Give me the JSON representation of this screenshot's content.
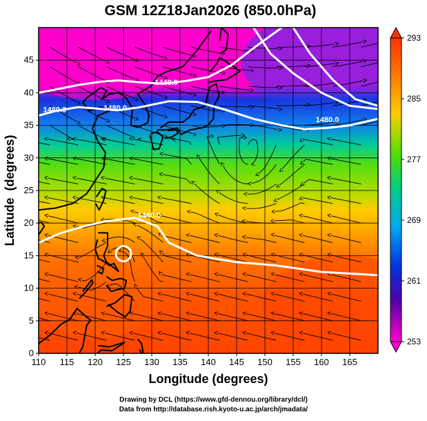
{
  "title": "GSM 12Z18Jan2026 (850.0hPa)",
  "xlabel": "Longitude (degrees)",
  "ylabel": "Latitude  (degrees)",
  "credits": {
    "line1": "Drawing by DCL (https://www.gfd-dennou.org/library/dcl/)",
    "line2": "Data from http://database.rish.kyoto-u.ac.jp/arch/jmadata/"
  },
  "map": {
    "lon_range": [
      110,
      170
    ],
    "lat_range": [
      0,
      50
    ],
    "lon_ticks": [
      "110",
      "115",
      "120",
      "125",
      "130",
      "135",
      "140",
      "145",
      "150",
      "155",
      "160",
      "165"
    ],
    "lat_ticks": [
      "0",
      "5",
      "10",
      "15",
      "20",
      "25",
      "30",
      "35",
      "40",
      "45"
    ],
    "grid": "on",
    "grid_spacing_deg": 5
  },
  "colorbar": {
    "labels": [
      "293",
      "285",
      "277",
      "269",
      "261",
      "253"
    ],
    "min": 253,
    "max": 293,
    "colors": [
      "#ff3300",
      "#ff8800",
      "#ffcc00",
      "#55dd00",
      "#00cc66",
      "#00aaee",
      "#0033dd",
      "#5500aa",
      "#ff00cc"
    ]
  },
  "contour_labels": [
    {
      "text": "1440.0",
      "lon": 130.5,
      "lat": 41.2
    },
    {
      "text": "1480.0",
      "lon": 121.5,
      "lat": 37.3
    },
    {
      "text": "1480.0",
      "lon": 110.8,
      "lat": 37.0
    },
    {
      "text": "1480.0",
      "lon": 159.0,
      "lat": 35.5
    },
    {
      "text": "1440.0",
      "lon": 127.5,
      "lat": 20.8
    }
  ],
  "typhoon_marker": {
    "lon": 125.0,
    "lat": 15.3
  }
}
